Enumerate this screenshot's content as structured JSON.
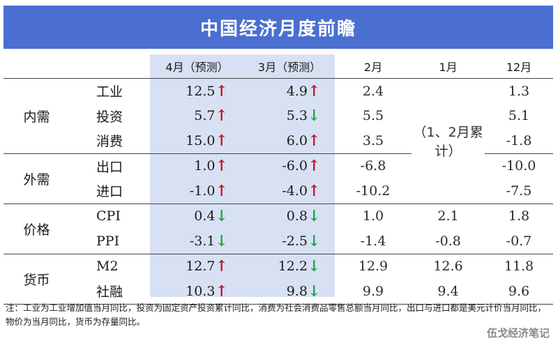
{
  "title": "中国经济月度前瞻",
  "headers": [
    "",
    "",
    "4月（预测）",
    "3月（预测）",
    "2月",
    "1月",
    "12月"
  ],
  "jan_feb_note": "（1、2月累计）",
  "groups": {
    "domestic": "内需",
    "external": "外需",
    "price": "价格",
    "money": "货币"
  },
  "rows": [
    {
      "group": "domestic",
      "item": "工业",
      "apr": "12.5",
      "apr_dir": "up",
      "mar": "4.9",
      "mar_dir": "up",
      "feb": "2.4",
      "jan": "",
      "dec": "1.3"
    },
    {
      "group": "domestic",
      "item": "投资",
      "apr": "5.7",
      "apr_dir": "up",
      "mar": "5.3",
      "mar_dir": "down",
      "feb": "5.5",
      "jan": "",
      "dec": "5.1"
    },
    {
      "group": "domestic",
      "item": "消费",
      "apr": "15.0",
      "apr_dir": "up",
      "mar": "6.0",
      "mar_dir": "up",
      "feb": "3.5",
      "jan": "",
      "dec": "-1.8"
    },
    {
      "group": "external",
      "item": "出口",
      "apr": "1.0",
      "apr_dir": "up",
      "mar": "-6.0",
      "mar_dir": "up",
      "feb": "-6.8",
      "jan": "",
      "dec": "-10.0"
    },
    {
      "group": "external",
      "item": "进口",
      "apr": "-1.0",
      "apr_dir": "up",
      "mar": "-4.0",
      "mar_dir": "up",
      "feb": "-10.2",
      "jan": "",
      "dec": "-7.5"
    },
    {
      "group": "price",
      "item": "CPI",
      "apr": "0.4",
      "apr_dir": "down",
      "mar": "0.8",
      "mar_dir": "down",
      "feb": "1.0",
      "jan": "2.1",
      "dec": "1.8"
    },
    {
      "group": "price",
      "item": "PPI",
      "apr": "-3.1",
      "apr_dir": "down",
      "mar": "-2.5",
      "mar_dir": "down",
      "feb": "-1.4",
      "jan": "-0.8",
      "dec": "-0.7"
    },
    {
      "group": "money",
      "item": "M2",
      "apr": "12.7",
      "apr_dir": "up",
      "mar": "12.2",
      "mar_dir": "down",
      "feb": "12.9",
      "jan": "12.6",
      "dec": "11.8"
    },
    {
      "group": "money",
      "item": "社融",
      "apr": "10.3",
      "apr_dir": "up",
      "mar": "9.8",
      "mar_dir": "down",
      "feb": "9.9",
      "jan": "9.4",
      "dec": "9.6"
    }
  ],
  "arrows": {
    "up": "↑",
    "down": "↓"
  },
  "colors": {
    "header_bg": "#4a6fd0",
    "forecast_bg": "#d7e1f3",
    "up": "#c0182a",
    "down": "#21a34a"
  },
  "footnote": "注：工业为工业增加值当月同比，投资为固定资产投资累计同比，消费为社会消费品零售总额当月同比，出口与进口都是美元计价当月同比，物价为当月同比，货币为存量同比。",
  "watermark": "伍戈经济笔记"
}
